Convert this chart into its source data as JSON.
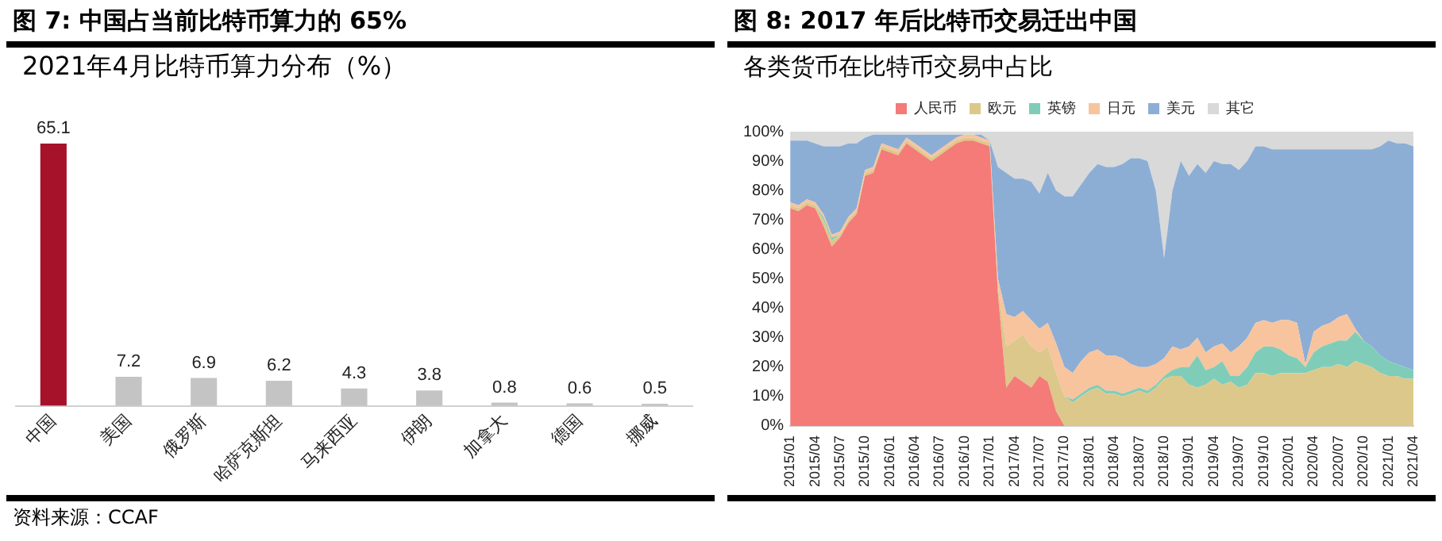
{
  "chart_data": [
    {
      "type": "bar",
      "title": "图 7: 中国占当前比特币算力的 65%",
      "subtitle": "2021年4月比特币算力分布（%）",
      "categories": [
        "中国",
        "美国",
        "俄罗斯",
        "哈萨克斯坦",
        "马来西亚",
        "伊朗",
        "加拿大",
        "德国",
        "挪威"
      ],
      "values": [
        65.1,
        7.2,
        6.9,
        6.2,
        4.3,
        3.8,
        0.8,
        0.6,
        0.5
      ],
      "colors": [
        "#a5122a",
        "#c4c4c4",
        "#c4c4c4",
        "#c4c4c4",
        "#c4c4c4",
        "#c4c4c4",
        "#c4c4c4",
        "#c4c4c4",
        "#c4c4c4"
      ],
      "data_labels": true,
      "tick_labels": "x",
      "grid": false,
      "legend": false,
      "annotations": [
        "资料来源：CCAF"
      ]
    },
    {
      "type": "area",
      "title": "图 8: 2017 年后比特币交易迁出中国",
      "subtitle": "各类货币在比特币交易中占比",
      "stacked": true,
      "legend": "top",
      "grid": false,
      "categories": [
        "2015/01",
        null,
        null,
        "2015/04",
        null,
        null,
        "2015/07",
        null,
        null,
        "2015/10",
        null,
        null,
        "2016/01",
        null,
        null,
        "2016/04",
        null,
        null,
        "2016/07",
        null,
        null,
        "2016/10",
        null,
        null,
        "2017/01",
        null,
        null,
        "2017/04",
        null,
        null,
        "2017/07",
        null,
        null,
        "2017/10",
        null,
        null,
        "2018/01",
        null,
        null,
        "2018/04",
        null,
        null,
        "2018/07",
        null,
        null,
        "2018/10",
        null,
        null,
        "2019/01",
        null,
        null,
        "2019/04",
        null,
        null,
        "2019/07",
        null,
        null,
        "2019/10",
        null,
        null,
        "2020/01",
        null,
        null,
        "2020/04",
        null,
        null,
        "2020/07",
        null,
        null,
        "2020/10",
        null,
        null,
        "2021/01",
        null,
        null,
        "2021/04"
      ],
      "ylim": [
        0,
        100
      ],
      "yticks": [
        {
          "value": 0,
          "label": "0%"
        },
        {
          "value": 10,
          "label": "10%"
        },
        {
          "value": 20,
          "label": "20%"
        },
        {
          "value": 30,
          "label": "30%"
        },
        {
          "value": 40,
          "label": "40%"
        },
        {
          "value": 50,
          "label": "50%"
        },
        {
          "value": 60,
          "label": "60%"
        },
        {
          "value": 70,
          "label": "70%"
        },
        {
          "value": 80,
          "label": "80%"
        },
        {
          "value": 90,
          "label": "90%"
        },
        {
          "value": 100,
          "label": "100%"
        }
      ],
      "series": [
        {
          "name": "人民币",
          "color": "#f47b77",
          "values": [
            74,
            73,
            75,
            74,
            68,
            61,
            64,
            69,
            72,
            85,
            86,
            94,
            93,
            92,
            96,
            94,
            92,
            90,
            92,
            94,
            96,
            97,
            97,
            96,
            95,
            45,
            13,
            17,
            15,
            13,
            17,
            15,
            5,
            0,
            0,
            0,
            0,
            0,
            0,
            0,
            0,
            0,
            0,
            0,
            0,
            0,
            0,
            0,
            0,
            0,
            0,
            0,
            0,
            0,
            0,
            0,
            0,
            0,
            0,
            0,
            0,
            0,
            0,
            0,
            0,
            0,
            0,
            0,
            0,
            0,
            0,
            0,
            0,
            0,
            0,
            0
          ]
        },
        {
          "name": "欧元",
          "color": "#dcc88a",
          "values": [
            1,
            1,
            1,
            1,
            2,
            2,
            1,
            1,
            1,
            1,
            1,
            1,
            1,
            1,
            1,
            1,
            1,
            1,
            1,
            1,
            1,
            1,
            1,
            1,
            1,
            2,
            14,
            12,
            16,
            14,
            8,
            12,
            13,
            10,
            8,
            10,
            12,
            13,
            11,
            11,
            10,
            11,
            12,
            11,
            13,
            16,
            17,
            17,
            14,
            13,
            14,
            16,
            14,
            15,
            13,
            14,
            18,
            18,
            17,
            18,
            18,
            18,
            18,
            19,
            20,
            20,
            21,
            20,
            22,
            21,
            20,
            18,
            17,
            17,
            16,
            16
          ]
        },
        {
          "name": "英镑",
          "color": "#7fcdb9",
          "values": [
            0,
            0,
            0,
            0,
            1,
            1,
            0,
            0,
            0,
            0,
            0,
            0,
            0,
            0,
            0,
            0,
            0,
            0,
            0,
            0,
            0,
            0,
            0,
            0,
            0,
            0,
            0,
            0,
            0,
            0,
            0,
            0,
            0,
            0,
            1,
            1,
            1,
            1,
            1,
            1,
            1,
            1,
            1,
            1,
            1,
            1,
            2,
            3,
            6,
            11,
            5,
            4,
            8,
            2,
            4,
            6,
            7,
            9,
            10,
            8,
            6,
            5,
            2,
            6,
            7,
            8,
            8,
            9,
            10,
            8,
            7,
            6,
            5,
            4,
            4,
            3
          ]
        },
        {
          "name": "日元",
          "color": "#f7c49d",
          "values": [
            1,
            1,
            1,
            1,
            1,
            1,
            1,
            1,
            1,
            1,
            1,
            1,
            1,
            1,
            1,
            1,
            1,
            1,
            1,
            1,
            1,
            1,
            1,
            1,
            1,
            3,
            11,
            8,
            8,
            9,
            8,
            8,
            10,
            10,
            9,
            11,
            12,
            12,
            12,
            12,
            12,
            9,
            7,
            8,
            7,
            6,
            8,
            6,
            7,
            6,
            6,
            7,
            6,
            8,
            10,
            10,
            10,
            9,
            8,
            10,
            12,
            12,
            1,
            7,
            7,
            7,
            8,
            9,
            1,
            0,
            0,
            0,
            0,
            0,
            0,
            0
          ]
        },
        {
          "name": "美元",
          "color": "#8caed5",
          "values": [
            21,
            22,
            20,
            20,
            23,
            30,
            29,
            25,
            22,
            11,
            11,
            3,
            4,
            5,
            1,
            3,
            5,
            7,
            5,
            3,
            1,
            0,
            0,
            1,
            0,
            38,
            48,
            47,
            45,
            47,
            46,
            51,
            52,
            58,
            60,
            60,
            61,
            63,
            64,
            64,
            66,
            70,
            71,
            70,
            59,
            34,
            53,
            64,
            58,
            59,
            61,
            63,
            61,
            64,
            60,
            60,
            60,
            59,
            59,
            58,
            58,
            59,
            73,
            62,
            60,
            59,
            57,
            56,
            61,
            65,
            67,
            71,
            75,
            75,
            76,
            76
          ]
        },
        {
          "name": "其它",
          "color": "#d9d9d9",
          "values": [
            3,
            3,
            3,
            4,
            5,
            5,
            5,
            4,
            4,
            2,
            1,
            1,
            1,
            1,
            1,
            1,
            1,
            1,
            1,
            1,
            1,
            1,
            1,
            1,
            3,
            12,
            14,
            16,
            16,
            17,
            21,
            14,
            20,
            22,
            22,
            18,
            14,
            11,
            12,
            12,
            11,
            9,
            9,
            10,
            20,
            43,
            20,
            10,
            15,
            11,
            14,
            10,
            11,
            11,
            13,
            10,
            5,
            5,
            6,
            6,
            6,
            6,
            6,
            6,
            6,
            6,
            6,
            6,
            6,
            6,
            6,
            5,
            3,
            4,
            4,
            5
          ]
        }
      ]
    }
  ]
}
